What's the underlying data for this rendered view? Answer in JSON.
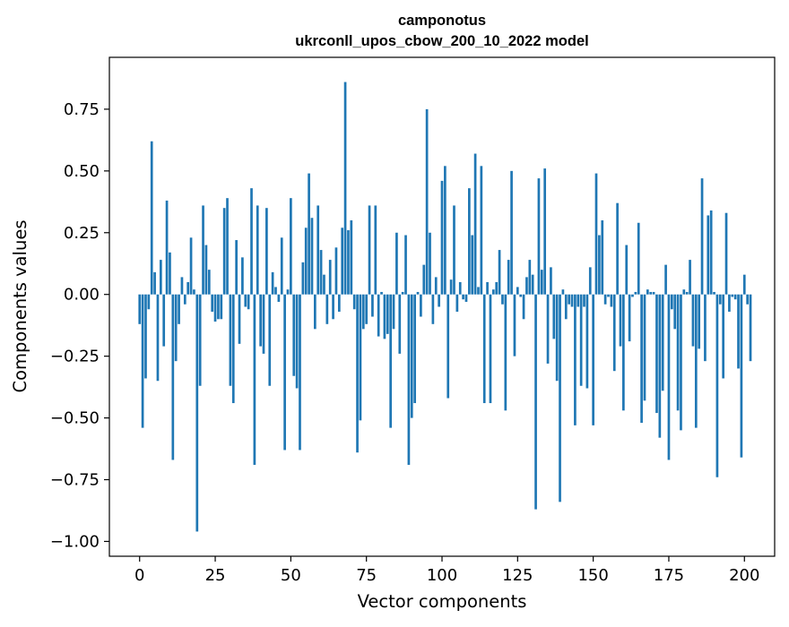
{
  "chart_data": {
    "type": "bar",
    "title": "camponotus",
    "subtitle": "ukrconll_upos_cbow_200_10_2022 model",
    "xlabel": "Vector components",
    "ylabel": "Components values",
    "xlim": [
      -10,
      210
    ],
    "ylim": [
      -1.06,
      0.96
    ],
    "xticks": [
      0,
      25,
      50,
      75,
      100,
      125,
      150,
      175,
      200
    ],
    "xtick_labels": [
      "0",
      "25",
      "50",
      "75",
      "100",
      "125",
      "150",
      "175",
      "200"
    ],
    "yticks": [
      -1.0,
      -0.75,
      -0.5,
      -0.25,
      0.0,
      0.25,
      0.5,
      0.75
    ],
    "ytick_labels": [
      "−1.00",
      "−0.75",
      "−0.50",
      "−0.25",
      "0.00",
      "0.25",
      "0.50",
      "0.75"
    ],
    "grid": false,
    "bar_color": "#1f77b4",
    "values": [
      -0.12,
      -0.54,
      -0.34,
      -0.06,
      0.62,
      0.09,
      -0.35,
      0.14,
      -0.21,
      0.38,
      0.17,
      -0.67,
      -0.27,
      -0.12,
      0.07,
      -0.04,
      0.05,
      0.23,
      0.02,
      -0.96,
      -0.37,
      0.36,
      0.2,
      0.1,
      -0.07,
      -0.11,
      -0.1,
      -0.1,
      0.35,
      0.39,
      -0.37,
      -0.44,
      0.22,
      -0.2,
      0.15,
      -0.05,
      -0.06,
      0.43,
      -0.69,
      0.36,
      -0.21,
      -0.24,
      0.35,
      -0.37,
      0.09,
      0.03,
      -0.03,
      0.23,
      -0.63,
      0.02,
      0.39,
      -0.33,
      -0.38,
      -0.63,
      0.13,
      0.27,
      0.49,
      0.31,
      -0.14,
      0.36,
      0.18,
      0.08,
      -0.12,
      0.14,
      -0.1,
      0.19,
      -0.07,
      0.27,
      0.86,
      0.26,
      0.3,
      -0.06,
      -0.64,
      -0.51,
      -0.14,
      -0.12,
      0.36,
      -0.09,
      0.36,
      -0.17,
      0.01,
      -0.18,
      -0.16,
      -0.54,
      -0.14,
      0.25,
      -0.24,
      0.01,
      0.24,
      -0.69,
      -0.5,
      -0.44,
      0.01,
      -0.09,
      0.12,
      0.75,
      0.25,
      -0.12,
      0.07,
      -0.05,
      0.46,
      0.52,
      -0.42,
      0.06,
      0.36,
      -0.07,
      0.05,
      -0.02,
      -0.03,
      0.43,
      0.24,
      0.57,
      0.03,
      0.52,
      -0.44,
      0.05,
      -0.44,
      0.02,
      0.05,
      0.18,
      -0.04,
      -0.47,
      0.14,
      0.5,
      -0.25,
      0.03,
      -0.01,
      -0.1,
      0.07,
      0.14,
      0.08,
      -0.87,
      0.47,
      0.1,
      0.51,
      -0.28,
      0.11,
      -0.18,
      -0.35,
      -0.84,
      0.02,
      -0.1,
      -0.04,
      -0.05,
      -0.53,
      -0.05,
      -0.37,
      -0.05,
      -0.38,
      0.11,
      -0.53,
      0.49,
      0.24,
      0.3,
      -0.04,
      -0.01,
      -0.05,
      -0.31,
      0.37,
      -0.21,
      -0.47,
      0.2,
      -0.19,
      -0.01,
      0.01,
      0.29,
      -0.52,
      -0.43,
      0.02,
      0.01,
      0.01,
      -0.48,
      -0.58,
      -0.39,
      0.12,
      -0.67,
      -0.06,
      -0.14,
      -0.47,
      -0.55,
      0.02,
      0.01,
      0.14,
      -0.21,
      -0.54,
      -0.22,
      0.47,
      -0.27,
      0.32,
      0.34,
      0.01,
      -0.74,
      -0.04,
      -0.34,
      0.33,
      -0.07,
      -0.01,
      -0.02,
      -0.3,
      -0.66,
      0.08,
      -0.04,
      -0.27
    ]
  }
}
